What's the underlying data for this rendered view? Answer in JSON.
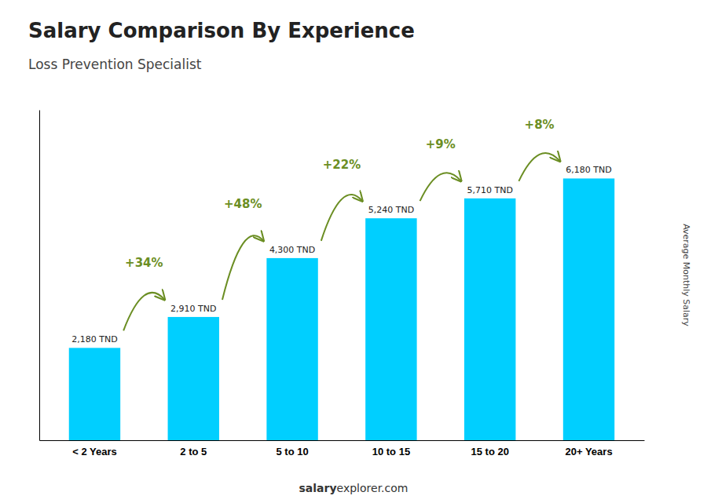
{
  "chart_data": {
    "type": "bar",
    "title": "Salary Comparison By Experience",
    "subtitle": "Loss Prevention Specialist",
    "ylabel": "Average Monthly Salary",
    "categories": [
      "< 2 Years",
      "2 to 5",
      "5 to 10",
      "10 to 15",
      "15 to 20",
      "20+ Years"
    ],
    "values": [
      2180,
      2910,
      4300,
      5240,
      5710,
      6180
    ],
    "value_labels": [
      "2,180 TND",
      "2,910 TND",
      "4,300 TND",
      "5,240 TND",
      "5,710 TND",
      "6,180 TND"
    ],
    "data_labels": true,
    "annotations": [
      "+34%",
      "+48%",
      "+22%",
      "+9%",
      "+8%"
    ],
    "footer": [
      "salary",
      "explorer.com"
    ],
    "color": "#00CFFF",
    "ylim": [
      0,
      7800
    ],
    "tick_labels": "x",
    "grid": false
  }
}
